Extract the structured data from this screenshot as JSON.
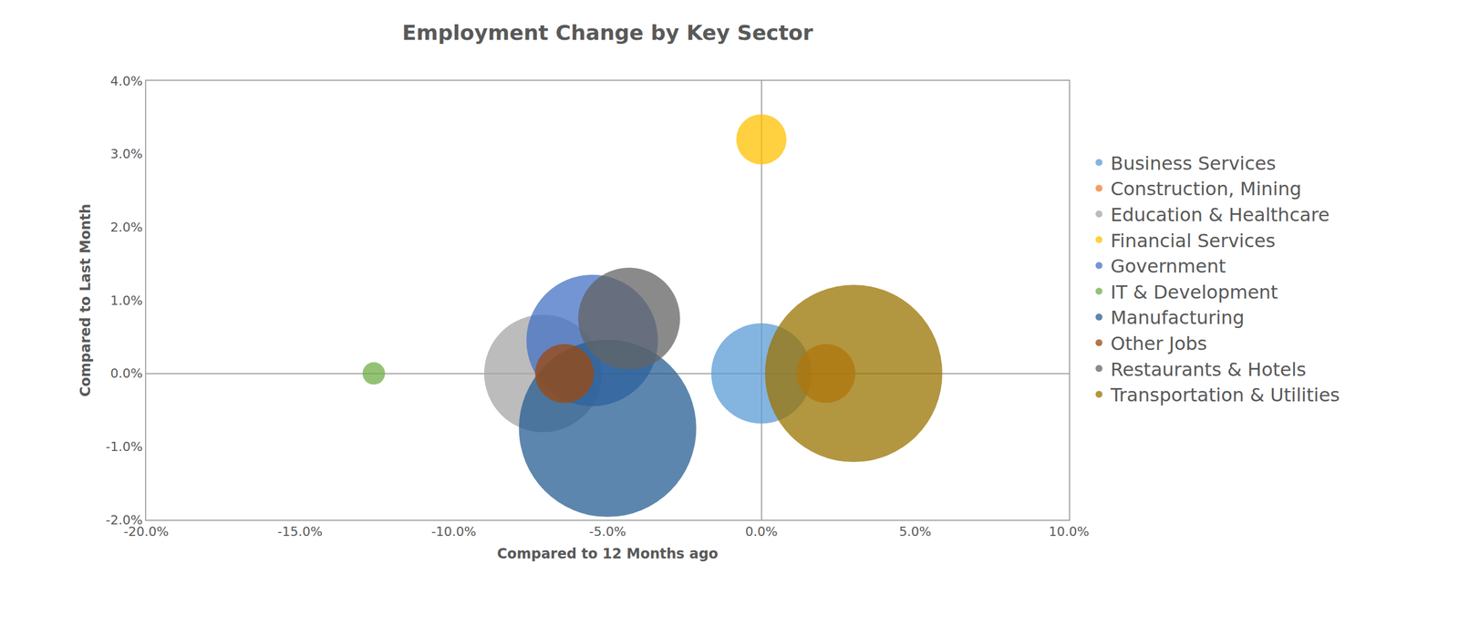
{
  "chart_data": {
    "type": "bubble",
    "title": "Employment Change by Key Sector",
    "x_label": "Compared to 12 Months ago",
    "y_label": "Compared to Last Month",
    "xlim": [
      -20,
      10
    ],
    "ylim": [
      -2,
      4
    ],
    "xticks": [
      {
        "value": -20,
        "label": "-20.0%"
      },
      {
        "value": -15,
        "label": "-15.0%"
      },
      {
        "value": -10,
        "label": "-10.0%"
      },
      {
        "value": -5,
        "label": "-5.0%"
      },
      {
        "value": 0,
        "label": "0.0%"
      },
      {
        "value": 5,
        "label": "5.0%"
      },
      {
        "value": 10,
        "label": "10.0%"
      }
    ],
    "yticks": [
      {
        "value": -2,
        "label": "-2.0%"
      },
      {
        "value": -1,
        "label": "-1.0%"
      },
      {
        "value": 0,
        "label": "0.0%"
      },
      {
        "value": 1,
        "label": "1.0%"
      },
      {
        "value": 2,
        "label": "2.0%"
      },
      {
        "value": 3,
        "label": "3.0%"
      },
      {
        "value": 4,
        "label": "4.0%"
      }
    ],
    "grid": false,
    "legend": "right",
    "series": [
      {
        "name": "Business Services",
        "color": "#5b9bd5",
        "x": [
          0.0
        ],
        "values": [
          0.0
        ],
        "sizes": [
          32
        ]
      },
      {
        "name": "Construction, Mining",
        "color": "#ed7d31",
        "x": [
          2.1
        ],
        "values": [
          0.0
        ],
        "sizes": [
          11
        ]
      },
      {
        "name": "Education & Healthcare",
        "color": "#a5a5a5",
        "x": [
          -7.1
        ],
        "values": [
          0.0
        ],
        "sizes": [
          44
        ]
      },
      {
        "name": "Financial Services",
        "color": "#ffc000",
        "x": [
          0.0
        ],
        "values": [
          3.2
        ],
        "sizes": [
          8
        ]
      },
      {
        "name": "Government",
        "color": "#4472c4",
        "x": [
          -5.5
        ],
        "values": [
          0.45
        ],
        "sizes": [
          55
        ]
      },
      {
        "name": "IT & Development",
        "color": "#70ad47",
        "x": [
          -12.6
        ],
        "values": [
          0.0
        ],
        "sizes": [
          1.6
        ]
      },
      {
        "name": "Manufacturing",
        "color": "#255e91",
        "x": [
          -5.0
        ],
        "values": [
          -0.75
        ],
        "sizes": [
          100
        ]
      },
      {
        "name": "Other Jobs",
        "color": "#9e480e",
        "x": [
          -6.4
        ],
        "values": [
          0.0
        ],
        "sizes": [
          11
        ]
      },
      {
        "name": "Restaurants & Hotels",
        "color": "#636363",
        "x": [
          -4.3
        ],
        "values": [
          0.75
        ],
        "sizes": [
          33
        ]
      },
      {
        "name": "Transportation & Utilities",
        "color": "#997300",
        "x": [
          3.0
        ],
        "values": [
          0.0
        ],
        "sizes": [
          100
        ]
      }
    ]
  }
}
